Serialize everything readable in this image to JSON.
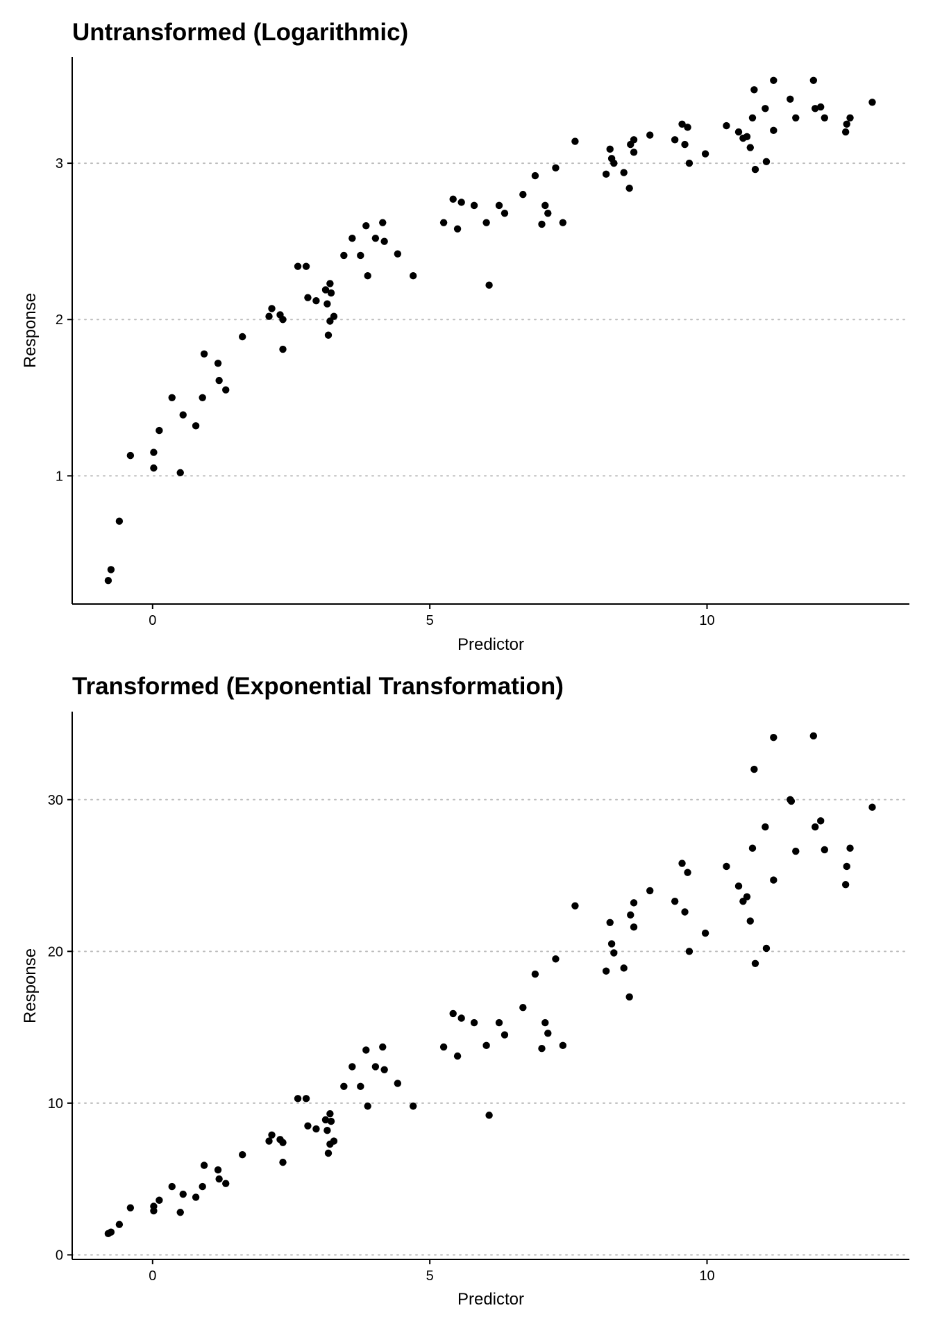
{
  "chart_data": [
    {
      "type": "scatter",
      "title": "Untransformed (Logarithmic)",
      "xlabel": "Predictor",
      "ylabel": "Response",
      "xlim": [
        -1.45,
        13.65
      ],
      "ylim": [
        0.18,
        3.68
      ],
      "xticks": [
        0,
        5,
        10
      ],
      "yticks": [
        1,
        2,
        3
      ],
      "grid": "horizontal-major-dotted",
      "legend": "none",
      "color": "#000000",
      "points": [
        {
          "x": -0.8,
          "y": 0.33
        },
        {
          "x": -0.75,
          "y": 0.4
        },
        {
          "x": -0.6,
          "y": 0.71
        },
        {
          "x": -0.4,
          "y": 1.13
        },
        {
          "x": 0.02,
          "y": 1.05
        },
        {
          "x": 0.02,
          "y": 1.15
        },
        {
          "x": 0.12,
          "y": 1.29
        },
        {
          "x": 0.35,
          "y": 1.5
        },
        {
          "x": 0.5,
          "y": 1.02
        },
        {
          "x": 0.55,
          "y": 1.39
        },
        {
          "x": 0.78,
          "y": 1.32
        },
        {
          "x": 0.9,
          "y": 1.5
        },
        {
          "x": 0.93,
          "y": 1.78
        },
        {
          "x": 1.18,
          "y": 1.72
        },
        {
          "x": 1.2,
          "y": 1.61
        },
        {
          "x": 1.32,
          "y": 1.55
        },
        {
          "x": 1.62,
          "y": 1.89
        },
        {
          "x": 2.1,
          "y": 2.02
        },
        {
          "x": 2.15,
          "y": 2.07
        },
        {
          "x": 2.3,
          "y": 2.03
        },
        {
          "x": 2.35,
          "y": 2.0
        },
        {
          "x": 2.35,
          "y": 1.81
        },
        {
          "x": 2.62,
          "y": 2.34
        },
        {
          "x": 2.77,
          "y": 2.34
        },
        {
          "x": 2.8,
          "y": 2.14
        },
        {
          "x": 2.95,
          "y": 2.12
        },
        {
          "x": 3.12,
          "y": 2.19
        },
        {
          "x": 3.15,
          "y": 2.1
        },
        {
          "x": 3.17,
          "y": 1.9
        },
        {
          "x": 3.2,
          "y": 2.23
        },
        {
          "x": 3.2,
          "y": 1.99
        },
        {
          "x": 3.22,
          "y": 2.17
        },
        {
          "x": 3.27,
          "y": 2.02
        },
        {
          "x": 3.45,
          "y": 2.41
        },
        {
          "x": 3.6,
          "y": 2.52
        },
        {
          "x": 3.75,
          "y": 2.41
        },
        {
          "x": 3.85,
          "y": 2.6
        },
        {
          "x": 3.88,
          "y": 2.28
        },
        {
          "x": 4.02,
          "y": 2.52
        },
        {
          "x": 4.15,
          "y": 2.62
        },
        {
          "x": 4.18,
          "y": 2.5
        },
        {
          "x": 4.42,
          "y": 2.42
        },
        {
          "x": 4.7,
          "y": 2.28
        },
        {
          "x": 5.25,
          "y": 2.62
        },
        {
          "x": 5.42,
          "y": 2.77
        },
        {
          "x": 5.5,
          "y": 2.58
        },
        {
          "x": 5.57,
          "y": 2.75
        },
        {
          "x": 5.8,
          "y": 2.73
        },
        {
          "x": 6.02,
          "y": 2.62
        },
        {
          "x": 6.07,
          "y": 2.22
        },
        {
          "x": 6.25,
          "y": 2.73
        },
        {
          "x": 6.35,
          "y": 2.68
        },
        {
          "x": 6.68,
          "y": 2.8
        },
        {
          "x": 6.9,
          "y": 2.92
        },
        {
          "x": 7.02,
          "y": 2.61
        },
        {
          "x": 7.08,
          "y": 2.73
        },
        {
          "x": 7.13,
          "y": 2.68
        },
        {
          "x": 7.27,
          "y": 2.97
        },
        {
          "x": 7.4,
          "y": 2.62
        },
        {
          "x": 7.62,
          "y": 3.14
        },
        {
          "x": 8.18,
          "y": 2.93
        },
        {
          "x": 8.25,
          "y": 3.09
        },
        {
          "x": 8.28,
          "y": 3.03
        },
        {
          "x": 8.32,
          "y": 3.0
        },
        {
          "x": 8.5,
          "y": 2.94
        },
        {
          "x": 8.6,
          "y": 2.84
        },
        {
          "x": 8.62,
          "y": 3.12
        },
        {
          "x": 8.68,
          "y": 3.15
        },
        {
          "x": 8.68,
          "y": 3.07
        },
        {
          "x": 8.97,
          "y": 3.18
        },
        {
          "x": 9.42,
          "y": 3.15
        },
        {
          "x": 9.55,
          "y": 3.25
        },
        {
          "x": 9.6,
          "y": 3.12
        },
        {
          "x": 9.65,
          "y": 3.23
        },
        {
          "x": 9.68,
          "y": 3.0
        },
        {
          "x": 9.97,
          "y": 3.06
        },
        {
          "x": 10.35,
          "y": 3.24
        },
        {
          "x": 10.57,
          "y": 3.2
        },
        {
          "x": 10.65,
          "y": 3.16
        },
        {
          "x": 10.72,
          "y": 3.17
        },
        {
          "x": 10.78,
          "y": 3.1
        },
        {
          "x": 10.82,
          "y": 3.29
        },
        {
          "x": 10.85,
          "y": 3.47
        },
        {
          "x": 10.87,
          "y": 2.96
        },
        {
          "x": 11.05,
          "y": 3.35
        },
        {
          "x": 11.07,
          "y": 3.01
        },
        {
          "x": 11.2,
          "y": 3.53
        },
        {
          "x": 11.2,
          "y": 3.21
        },
        {
          "x": 11.5,
          "y": 3.41
        },
        {
          "x": 11.6,
          "y": 3.29
        },
        {
          "x": 11.92,
          "y": 3.53
        },
        {
          "x": 11.95,
          "y": 3.35
        },
        {
          "x": 12.05,
          "y": 3.36
        },
        {
          "x": 12.12,
          "y": 3.29
        },
        {
          "x": 12.5,
          "y": 3.2
        },
        {
          "x": 12.52,
          "y": 3.25
        },
        {
          "x": 12.58,
          "y": 3.29
        },
        {
          "x": 12.98,
          "y": 3.39
        }
      ]
    },
    {
      "type": "scatter",
      "title": "Transformed (Exponential Transformation)",
      "xlabel": "Predictor",
      "ylabel": "Response",
      "xlim": [
        -1.45,
        13.65
      ],
      "ylim": [
        -0.3,
        35.8
      ],
      "xticks": [
        0,
        5,
        10
      ],
      "yticks": [
        0,
        10,
        20,
        30
      ],
      "grid": "horizontal-major-dotted",
      "legend": "none",
      "color": "#000000",
      "points": [
        {
          "x": -0.8,
          "y": 1.4
        },
        {
          "x": -0.75,
          "y": 1.5
        },
        {
          "x": -0.6,
          "y": 2.0
        },
        {
          "x": -0.4,
          "y": 3.1
        },
        {
          "x": 0.02,
          "y": 2.9
        },
        {
          "x": 0.02,
          "y": 3.2
        },
        {
          "x": 0.12,
          "y": 3.6
        },
        {
          "x": 0.35,
          "y": 4.5
        },
        {
          "x": 0.5,
          "y": 2.8
        },
        {
          "x": 0.55,
          "y": 4.0
        },
        {
          "x": 0.78,
          "y": 3.8
        },
        {
          "x": 0.9,
          "y": 4.5
        },
        {
          "x": 0.93,
          "y": 5.9
        },
        {
          "x": 1.18,
          "y": 5.6
        },
        {
          "x": 1.2,
          "y": 5.0
        },
        {
          "x": 1.32,
          "y": 4.7
        },
        {
          "x": 1.62,
          "y": 6.6
        },
        {
          "x": 2.1,
          "y": 7.5
        },
        {
          "x": 2.15,
          "y": 7.9
        },
        {
          "x": 2.3,
          "y": 7.6
        },
        {
          "x": 2.35,
          "y": 7.4
        },
        {
          "x": 2.35,
          "y": 6.1
        },
        {
          "x": 2.62,
          "y": 10.3
        },
        {
          "x": 2.77,
          "y": 10.3
        },
        {
          "x": 2.8,
          "y": 8.5
        },
        {
          "x": 2.95,
          "y": 8.3
        },
        {
          "x": 3.12,
          "y": 8.9
        },
        {
          "x": 3.15,
          "y": 8.2
        },
        {
          "x": 3.17,
          "y": 6.7
        },
        {
          "x": 3.2,
          "y": 9.3
        },
        {
          "x": 3.2,
          "y": 7.3
        },
        {
          "x": 3.22,
          "y": 8.8
        },
        {
          "x": 3.27,
          "y": 7.5
        },
        {
          "x": 3.45,
          "y": 11.1
        },
        {
          "x": 3.6,
          "y": 12.4
        },
        {
          "x": 3.75,
          "y": 11.1
        },
        {
          "x": 3.85,
          "y": 13.5
        },
        {
          "x": 3.88,
          "y": 9.8
        },
        {
          "x": 4.02,
          "y": 12.4
        },
        {
          "x": 4.15,
          "y": 13.7
        },
        {
          "x": 4.18,
          "y": 12.2
        },
        {
          "x": 4.42,
          "y": 11.3
        },
        {
          "x": 4.7,
          "y": 9.8
        },
        {
          "x": 5.25,
          "y": 13.7
        },
        {
          "x": 5.42,
          "y": 15.9
        },
        {
          "x": 5.5,
          "y": 13.1
        },
        {
          "x": 5.57,
          "y": 15.6
        },
        {
          "x": 5.8,
          "y": 15.3
        },
        {
          "x": 6.02,
          "y": 13.8
        },
        {
          "x": 6.07,
          "y": 9.2
        },
        {
          "x": 6.25,
          "y": 15.3
        },
        {
          "x": 6.35,
          "y": 14.5
        },
        {
          "x": 6.68,
          "y": 16.3
        },
        {
          "x": 6.9,
          "y": 18.5
        },
        {
          "x": 7.02,
          "y": 13.6
        },
        {
          "x": 7.08,
          "y": 15.3
        },
        {
          "x": 7.13,
          "y": 14.6
        },
        {
          "x": 7.27,
          "y": 19.5
        },
        {
          "x": 7.4,
          "y": 13.8
        },
        {
          "x": 7.62,
          "y": 23.0
        },
        {
          "x": 8.18,
          "y": 18.7
        },
        {
          "x": 8.25,
          "y": 21.9
        },
        {
          "x": 8.28,
          "y": 20.5
        },
        {
          "x": 8.32,
          "y": 19.9
        },
        {
          "x": 8.5,
          "y": 18.9
        },
        {
          "x": 8.6,
          "y": 17.0
        },
        {
          "x": 8.62,
          "y": 22.4
        },
        {
          "x": 8.68,
          "y": 23.2
        },
        {
          "x": 8.68,
          "y": 21.6
        },
        {
          "x": 8.97,
          "y": 24.0
        },
        {
          "x": 9.42,
          "y": 23.3
        },
        {
          "x": 9.55,
          "y": 25.8
        },
        {
          "x": 9.6,
          "y": 22.6
        },
        {
          "x": 9.65,
          "y": 25.2
        },
        {
          "x": 9.68,
          "y": 20.0
        },
        {
          "x": 9.97,
          "y": 21.2
        },
        {
          "x": 10.35,
          "y": 25.6
        },
        {
          "x": 10.57,
          "y": 24.3
        },
        {
          "x": 10.65,
          "y": 23.3
        },
        {
          "x": 10.72,
          "y": 23.6
        },
        {
          "x": 10.78,
          "y": 22.0
        },
        {
          "x": 10.82,
          "y": 26.8
        },
        {
          "x": 10.85,
          "y": 32.0
        },
        {
          "x": 10.87,
          "y": 19.2
        },
        {
          "x": 11.05,
          "y": 28.2
        },
        {
          "x": 11.07,
          "y": 20.2
        },
        {
          "x": 11.2,
          "y": 34.1
        },
        {
          "x": 11.2,
          "y": 24.7
        },
        {
          "x": 11.5,
          "y": 30.0
        },
        {
          "x": 11.52,
          "y": 29.9
        },
        {
          "x": 11.6,
          "y": 26.6
        },
        {
          "x": 11.92,
          "y": 34.2
        },
        {
          "x": 11.95,
          "y": 28.2
        },
        {
          "x": 12.05,
          "y": 28.6
        },
        {
          "x": 12.12,
          "y": 26.7
        },
        {
          "x": 12.5,
          "y": 24.4
        },
        {
          "x": 12.52,
          "y": 25.6
        },
        {
          "x": 12.58,
          "y": 26.8
        },
        {
          "x": 12.98,
          "y": 29.5
        }
      ]
    }
  ]
}
